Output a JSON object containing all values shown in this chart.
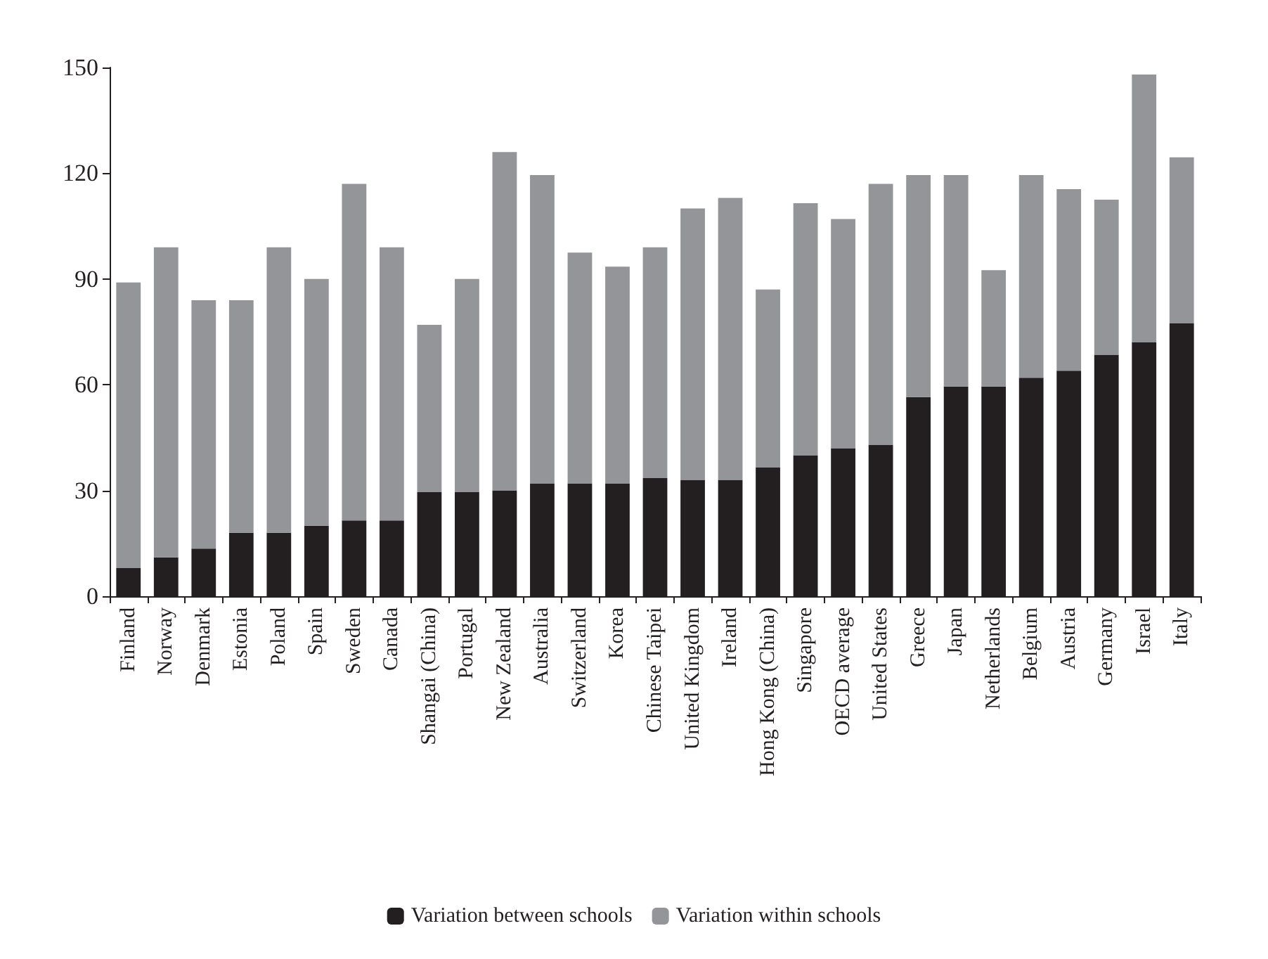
{
  "chart_data": {
    "type": "bar",
    "stacked": true,
    "categories": [
      "Finland",
      "Norway",
      "Denmark",
      "Estonia",
      "Poland",
      "Spain",
      "Sweden",
      "Canada",
      "Shangai (China)",
      "Portugal",
      "New Zealand",
      "Australia",
      "Switzerland",
      "Korea",
      "Chinese Taipei",
      "United Kingdom",
      "Ireland",
      "Hong Kong (China)",
      "Singapore",
      "OECD average",
      "United States",
      "Greece",
      "Japan",
      "Netherlands",
      "Belgium",
      "Austria",
      "Germany",
      "Israel",
      "Italy"
    ],
    "series": [
      {
        "name": "Variation between schools",
        "color": "#231f20",
        "values": [
          8,
          11,
          13.5,
          18,
          18,
          20,
          21.5,
          21.5,
          29.5,
          29.5,
          30,
          32,
          32,
          32,
          33.5,
          33,
          33,
          36.5,
          40,
          42,
          43,
          56.5,
          59.5,
          59.5,
          62,
          64,
          68.5,
          72,
          77.5
        ]
      },
      {
        "name": "Variation within schools",
        "color": "#939598",
        "values": [
          81,
          88,
          70.5,
          66,
          81,
          70,
          95.5,
          77.5,
          47.5,
          60.5,
          96,
          87.5,
          65.5,
          61.5,
          65.5,
          77,
          80,
          50.5,
          71.5,
          65,
          74,
          63,
          60,
          33,
          57.5,
          51.5,
          44,
          76,
          47
        ]
      }
    ],
    "ylim": [
      0,
      150
    ],
    "yticks": [
      0,
      30,
      60,
      90,
      120,
      150
    ],
    "grid": false,
    "legend": "bottom"
  }
}
